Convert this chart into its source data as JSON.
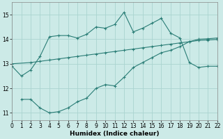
{
  "xlabel": "Humidex (Indice chaleur)",
  "background_color": "#cceae7",
  "grid_color": "#aad4d0",
  "line_color": "#2a7d76",
  "xlim": [
    0,
    22
  ],
  "ylim": [
    10.7,
    15.5
  ],
  "yticks": [
    11,
    12,
    13,
    14,
    15
  ],
  "xticks": [
    0,
    1,
    2,
    3,
    4,
    5,
    6,
    7,
    8,
    9,
    10,
    11,
    12,
    13,
    14,
    15,
    16,
    17,
    18,
    19,
    20,
    21,
    22
  ],
  "line1_x": [
    0,
    1,
    2,
    3,
    4,
    5,
    6,
    7,
    8,
    9,
    10,
    11,
    12,
    13,
    14,
    15,
    16,
    17,
    18,
    19,
    20,
    21,
    22
  ],
  "line1_y": [
    12.9,
    12.5,
    12.75,
    13.3,
    14.1,
    14.15,
    14.15,
    14.05,
    14.2,
    14.5,
    14.45,
    14.6,
    15.1,
    14.3,
    14.45,
    14.65,
    14.85,
    14.25,
    14.05,
    13.05,
    12.85,
    12.9,
    12.9
  ],
  "line2_x": [
    0,
    2,
    3,
    4,
    5,
    6,
    7,
    8,
    9,
    10,
    11,
    12,
    13,
    14,
    15,
    16,
    17,
    18,
    19,
    20,
    21,
    22
  ],
  "line2_y": [
    13.0,
    13.05,
    13.1,
    13.15,
    13.2,
    13.25,
    13.3,
    13.35,
    13.4,
    13.45,
    13.5,
    13.55,
    13.6,
    13.65,
    13.7,
    13.75,
    13.8,
    13.85,
    13.9,
    13.95,
    13.97,
    13.99
  ],
  "line3_x": [
    1,
    2,
    3,
    4,
    5,
    6,
    7,
    8,
    9,
    10,
    11,
    12,
    13,
    14,
    15,
    16,
    17,
    18,
    19,
    20,
    21,
    22
  ],
  "line3_y": [
    11.55,
    11.55,
    11.2,
    11.0,
    11.05,
    11.2,
    11.45,
    11.6,
    12.0,
    12.15,
    12.1,
    12.45,
    12.85,
    13.05,
    13.25,
    13.45,
    13.55,
    13.7,
    13.9,
    14.0,
    14.02,
    14.05
  ]
}
